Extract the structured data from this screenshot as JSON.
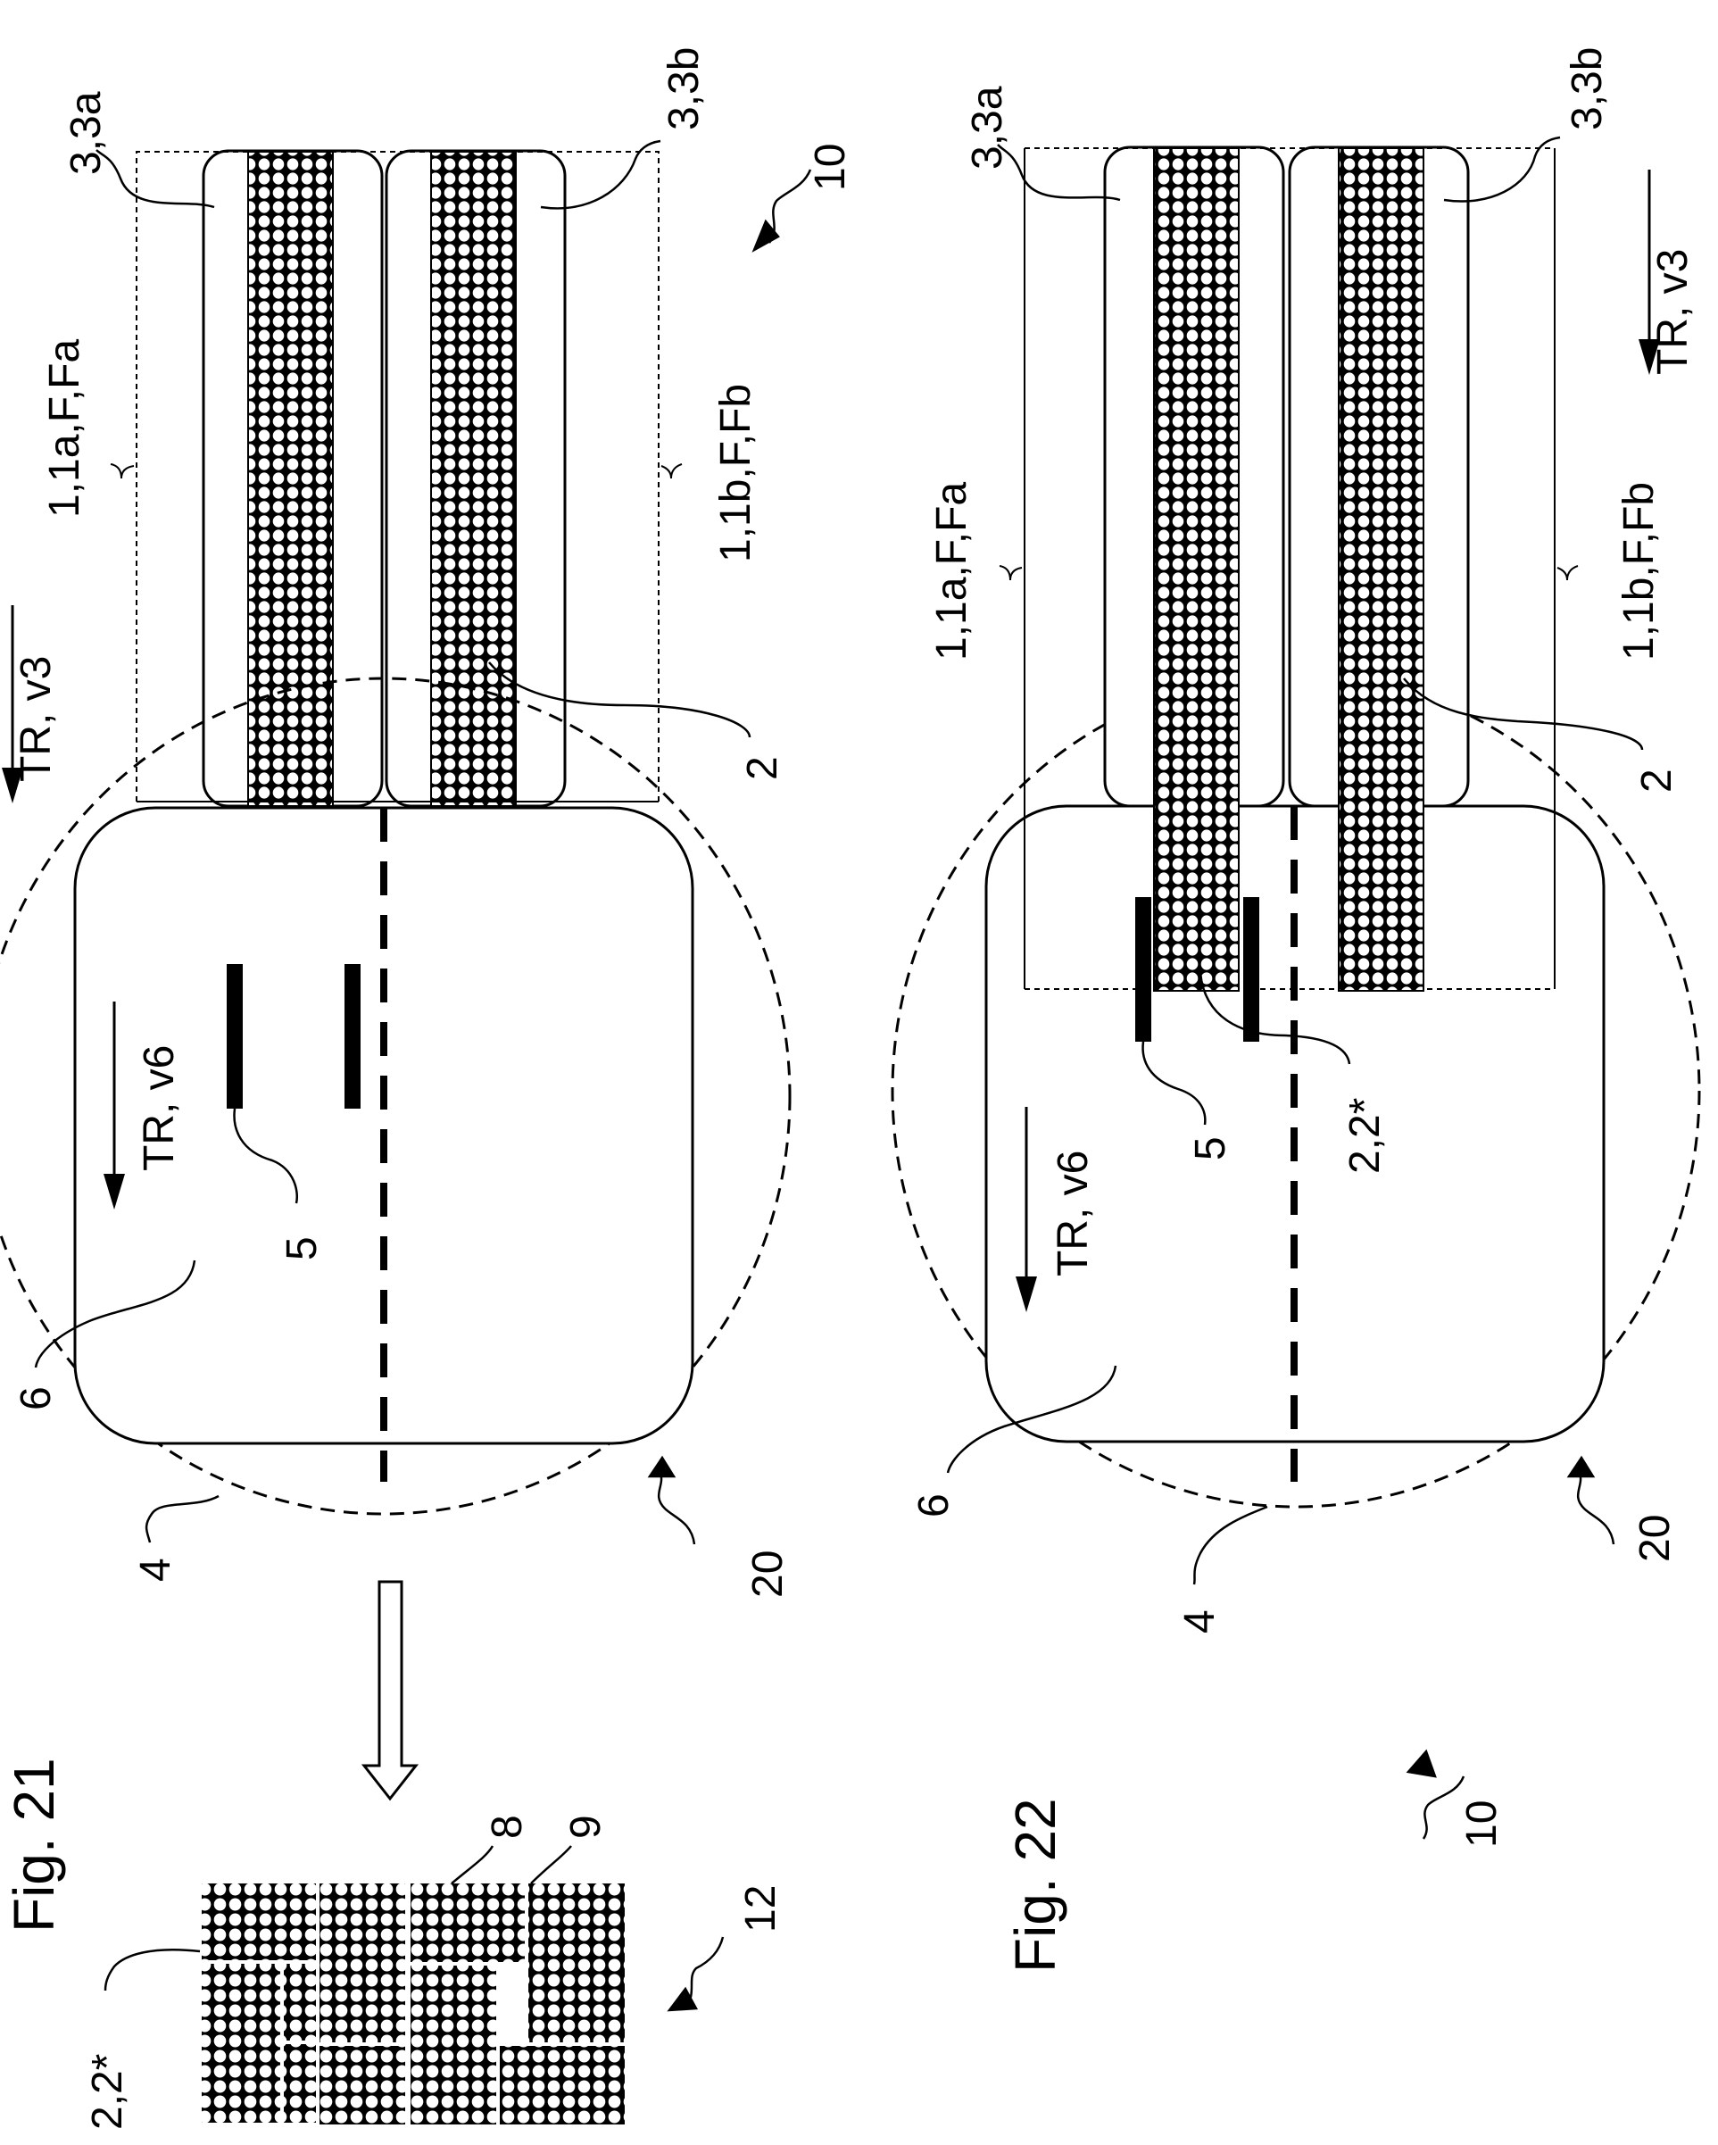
{
  "figure21": {
    "title": "Fig. 21",
    "labels": {
      "lane_top_ref": "3,3a",
      "lane_bottom_ref": "3,3b",
      "group_top_ref": "1,1a,F,Fa",
      "group_bottom_ref": "1,1b,F,Fb",
      "conveyor_ref": "TR, v3",
      "station_conveyor_ref": "TR, v6",
      "device_ref": "10",
      "articles_ref": "2",
      "gripper_ref": "5",
      "platform_ref": "6",
      "circle_ref": "4",
      "handling_ref": "20",
      "layer_ref": "12",
      "layer_item_ref": "2,2*",
      "pack_a_ref": "8",
      "pack_b_ref": "9"
    }
  },
  "figure22": {
    "title": "Fig. 22",
    "labels": {
      "lane_top_ref": "3,3a",
      "lane_bottom_ref": "3,3b",
      "group_top_ref": "1,1a,F,Fa",
      "group_bottom_ref": "1,1b,F,Fb",
      "conveyor_ref": "TR, v3",
      "station_conveyor_ref": "TR, v6",
      "device_ref": "10",
      "articles_ref": "2",
      "gripper_ref": "5",
      "gripped_ref": "2,2*",
      "platform_ref": "6",
      "circle_ref": "4",
      "handling_ref": "20"
    }
  },
  "colors": {
    "ink": "#000000",
    "paper": "#ffffff"
  }
}
